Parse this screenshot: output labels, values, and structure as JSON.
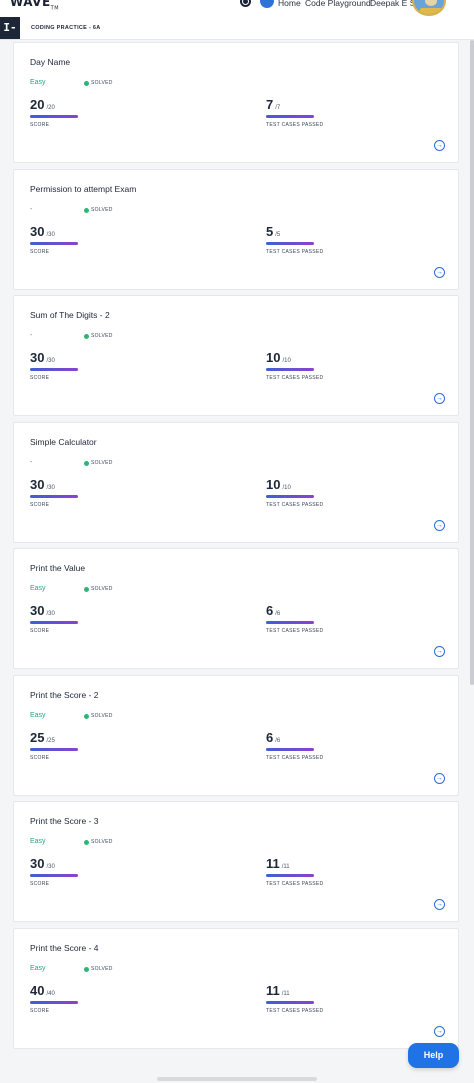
{
  "header": {
    "logo": "WAVE",
    "logo_suffix": "TM",
    "nav": {
      "home": "Home",
      "code_playground": "Code Playground",
      "user": "Deepak E S"
    }
  },
  "breadcrumb": "CODING PRACTICE - 6A",
  "cards": [
    {
      "title": "Day Name",
      "difficulty": "Easy",
      "status": "SOLVED",
      "score": "20",
      "score_max": "/20",
      "score_label": "SCORE",
      "tests": "7",
      "tests_max": "/7",
      "tests_label": "TEST CASES PASSED"
    },
    {
      "title": "Permission to attempt Exam",
      "difficulty": "-",
      "status": "SOLVED",
      "score": "30",
      "score_max": "/30",
      "score_label": "SCORE",
      "tests": "5",
      "tests_max": "/5",
      "tests_label": "TEST CASES PASSED"
    },
    {
      "title": "Sum of The Digits - 2",
      "difficulty": "-",
      "status": "SOLVED",
      "score": "30",
      "score_max": "/30",
      "score_label": "SCORE",
      "tests": "10",
      "tests_max": "/10",
      "tests_label": "TEST CASES PASSED"
    },
    {
      "title": "Simple Calculator",
      "difficulty": "-",
      "status": "SOLVED",
      "score": "30",
      "score_max": "/30",
      "score_label": "SCORE",
      "tests": "10",
      "tests_max": "/10",
      "tests_label": "TEST CASES PASSED"
    },
    {
      "title": "Print the Value",
      "difficulty": "Easy",
      "status": "SOLVED",
      "score": "30",
      "score_max": "/30",
      "score_label": "SCORE",
      "tests": "6",
      "tests_max": "/6",
      "tests_label": "TEST CASES PASSED"
    },
    {
      "title": "Print the Score - 2",
      "difficulty": "Easy",
      "status": "SOLVED",
      "score": "25",
      "score_max": "/25",
      "score_label": "SCORE",
      "tests": "6",
      "tests_max": "/6",
      "tests_label": "TEST CASES PASSED"
    },
    {
      "title": "Print the Score - 3",
      "difficulty": "Easy",
      "status": "SOLVED",
      "score": "30",
      "score_max": "/30",
      "score_label": "SCORE",
      "tests": "11",
      "tests_max": "/11",
      "tests_label": "TEST CASES PASSED"
    },
    {
      "title": "Print the Score - 4",
      "difficulty": "Easy",
      "status": "SOLVED",
      "score": "40",
      "score_max": "/40",
      "score_label": "SCORE",
      "tests": "11",
      "tests_max": "/11",
      "tests_label": "TEST CASES PASSED"
    }
  ],
  "help_button": "Help",
  "icons": {
    "side_toggle": "sidebar-toggle-icon",
    "open": "arrow-circle-right-icon",
    "status": "status-dot-icon"
  },
  "colors": {
    "easy": "#21a87a",
    "solved": "#2bb673",
    "accent": "#1f73e6",
    "progress_start": "#3f5fd6",
    "progress_end": "#8a42d1"
  }
}
